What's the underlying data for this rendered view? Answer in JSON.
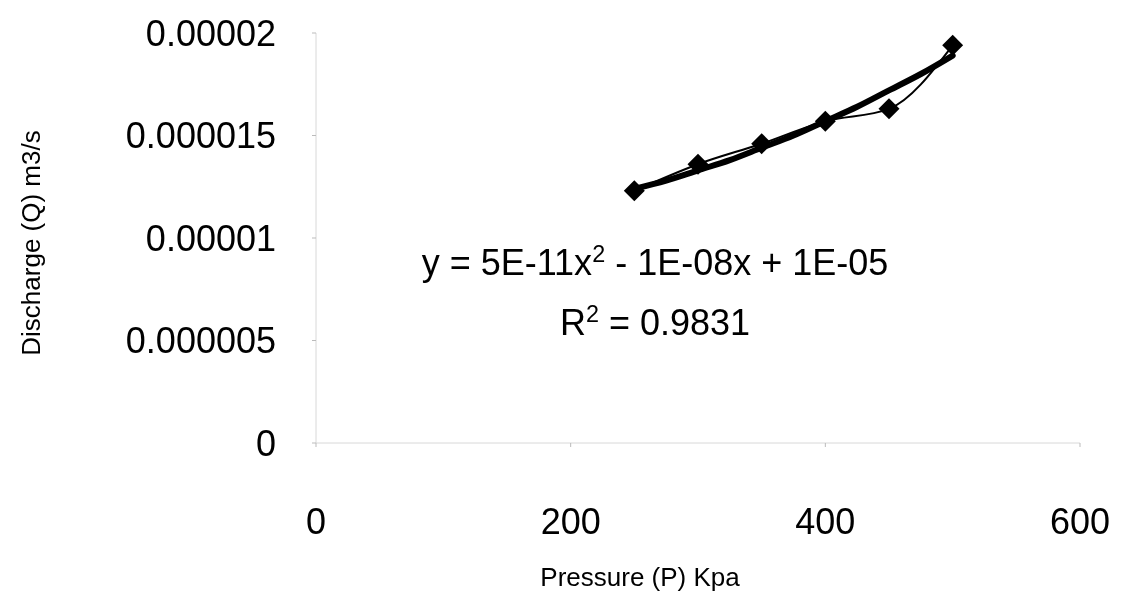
{
  "chart_data": {
    "type": "line",
    "xlabel": "Pressure (P) Kpa",
    "ylabel": "Discharge (Q) m3/s",
    "xlim": [
      0,
      600
    ],
    "xticks": [
      0,
      200,
      400,
      600
    ],
    "ylim": [
      0,
      2e-05
    ],
    "yticks": [
      0,
      {
        "value": 5e-06,
        "label": "0.000005"
      },
      {
        "value": 1e-05,
        "label": "0.00001"
      },
      {
        "value": 1.5e-05,
        "label": "0.000015"
      },
      {
        "value": 2e-05,
        "label": "0.00002"
      }
    ],
    "grid": false,
    "marker": "diamond",
    "series": [
      {
        "color": "#000000",
        "x": [
          250,
          300,
          350,
          400,
          450,
          500
        ],
        "values": [
          1.23e-05,
          1.36e-05,
          1.46e-05,
          1.57e-05,
          1.63e-05,
          1.94e-05
        ]
      },
      {
        "color": "#000000",
        "marker": "none",
        "x": [
          250,
          275,
          300,
          325,
          350,
          375,
          400,
          425,
          450,
          475,
          500
        ],
        "values": [
          1.24e-05,
          1.28e-05,
          1.33e-05,
          1.38e-05,
          1.44e-05,
          1.5e-05,
          1.57e-05,
          1.64e-05,
          1.72e-05,
          1.8e-05,
          1.89e-05
        ]
      }
    ],
    "annotations": [
      "y = 5E-11x$^{2}$ - 1E-08x + 1E-05",
      "R$^{2}$ = 0.9831"
    ]
  }
}
